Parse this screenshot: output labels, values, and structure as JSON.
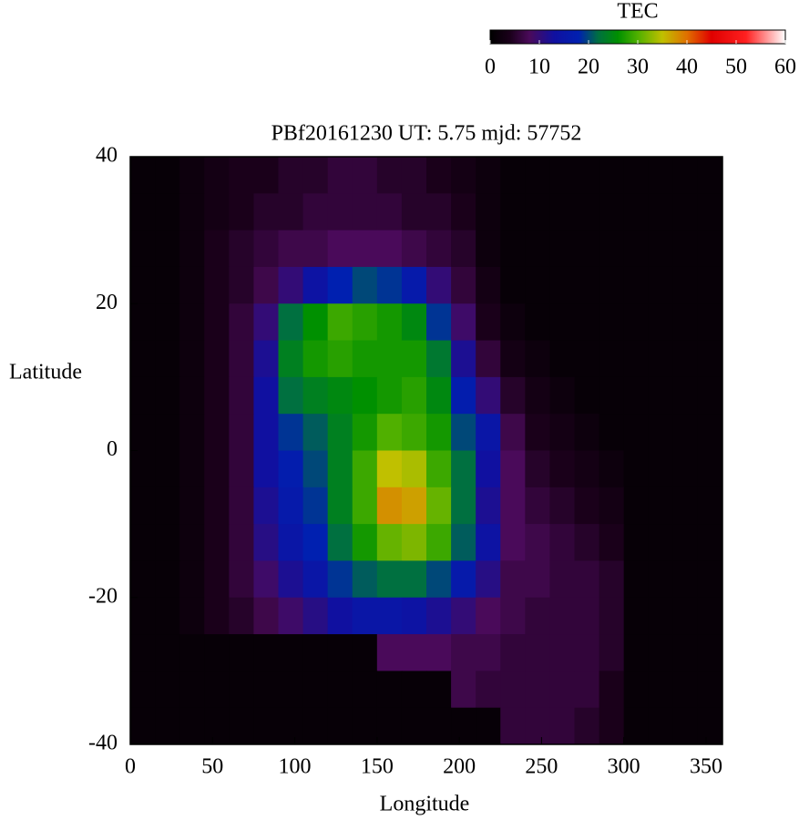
{
  "chart_data": {
    "type": "heatmap",
    "title": "PBf20161230  UT: 5.75  mjd: 57752",
    "x_label": "Longitude",
    "y_label": "Latitude",
    "colorbar_label": "TEC",
    "x": [
      7.5,
      22.5,
      37.5,
      52.5,
      67.5,
      82.5,
      97.5,
      112.5,
      127.5,
      142.5,
      157.5,
      172.5,
      187.5,
      202.5,
      217.5,
      232.5,
      247.5,
      262.5,
      277.5,
      292.5,
      307.5,
      322.5,
      337.5,
      352.5
    ],
    "y": [
      37.5,
      32.5,
      27.5,
      22.5,
      17.5,
      12.5,
      7.5,
      2.5,
      -2.5,
      -7.5,
      -12.5,
      -17.5,
      -22.5,
      -27.5,
      -32.5,
      -37.5
    ],
    "values": [
      [
        1,
        1,
        2,
        3,
        4,
        4,
        5,
        5,
        6,
        6,
        5,
        5,
        4,
        3,
        2,
        1,
        1,
        1,
        1,
        1,
        1,
        1,
        1,
        1
      ],
      [
        1,
        1,
        2,
        3,
        4,
        5,
        5,
        6,
        6,
        6,
        6,
        5,
        5,
        4,
        2,
        1,
        1,
        1,
        1,
        1,
        1,
        1,
        1,
        1
      ],
      [
        1,
        1,
        2,
        4,
        5,
        6,
        7,
        7,
        8,
        8,
        8,
        7,
        6,
        5,
        2,
        1,
        1,
        1,
        1,
        1,
        1,
        1,
        1,
        1
      ],
      [
        1,
        1,
        2,
        4,
        5,
        7,
        10,
        14,
        18,
        20,
        19,
        16,
        10,
        6,
        3,
        1,
        1,
        1,
        1,
        1,
        1,
        1,
        1,
        1
      ],
      [
        1,
        1,
        2,
        4,
        6,
        10,
        22,
        26,
        29,
        28,
        27,
        25,
        19,
        9,
        4,
        2,
        1,
        1,
        1,
        1,
        1,
        1,
        1,
        1
      ],
      [
        1,
        1,
        2,
        4,
        6,
        12,
        24,
        27,
        28,
        27,
        27,
        27,
        23,
        12,
        6,
        3,
        2,
        1,
        1,
        1,
        1,
        1,
        1,
        1
      ],
      [
        1,
        1,
        2,
        4,
        6,
        13,
        22,
        24,
        25,
        26,
        27,
        28,
        25,
        17,
        10,
        5,
        3,
        2,
        1,
        1,
        1,
        1,
        1,
        1
      ],
      [
        1,
        1,
        2,
        4,
        6,
        13,
        19,
        21,
        24,
        27,
        30,
        29,
        27,
        20,
        15,
        7,
        4,
        3,
        2,
        1,
        1,
        1,
        1,
        1
      ],
      [
        1,
        1,
        2,
        4,
        6,
        13,
        17,
        20,
        24,
        29,
        35,
        34,
        29,
        22,
        13,
        8,
        5,
        4,
        3,
        2,
        1,
        1,
        1,
        1
      ],
      [
        1,
        1,
        2,
        4,
        6,
        12,
        16,
        19,
        24,
        29,
        38,
        37,
        31,
        22,
        12,
        8,
        6,
        5,
        4,
        3,
        1,
        1,
        1,
        1
      ],
      [
        1,
        1,
        2,
        4,
        6,
        11,
        15,
        18,
        22,
        27,
        31,
        32,
        29,
        21,
        14,
        8,
        7,
        6,
        5,
        4,
        1,
        1,
        1,
        1
      ],
      [
        1,
        1,
        2,
        4,
        6,
        9,
        12,
        15,
        19,
        21,
        22,
        22,
        20,
        16,
        11,
        7,
        7,
        6,
        6,
        5,
        1,
        1,
        1,
        1
      ],
      [
        1,
        1,
        2,
        4,
        5,
        7,
        9,
        11,
        13,
        15,
        15,
        14,
        12,
        10,
        8,
        7,
        6,
        6,
        6,
        5,
        1,
        1,
        1,
        1
      ],
      [
        1,
        1,
        1,
        1,
        1,
        1,
        1,
        1,
        1,
        1,
        8,
        8,
        8,
        7,
        7,
        6,
        6,
        6,
        6,
        5,
        1,
        1,
        1,
        1
      ],
      [
        1,
        1,
        1,
        1,
        1,
        1,
        1,
        1,
        1,
        1,
        1,
        1,
        1,
        7,
        6,
        6,
        6,
        6,
        6,
        4,
        1,
        1,
        1,
        1
      ],
      [
        1,
        1,
        1,
        1,
        1,
        1,
        1,
        1,
        1,
        1,
        1,
        1,
        1,
        1,
        1,
        6,
        6,
        6,
        5,
        4,
        1,
        1,
        1,
        1
      ]
    ],
    "xlim": [
      0,
      360
    ],
    "xticks": [
      0,
      50,
      100,
      150,
      200,
      250,
      300,
      350
    ],
    "ylim": [
      -40,
      40
    ],
    "yticks": [
      -40,
      -20,
      0,
      20,
      40
    ],
    "zlim": [
      0,
      60
    ],
    "zticks": [
      0,
      10,
      20,
      30,
      40,
      50,
      60
    ],
    "colormap": [
      [
        0,
        "#000000"
      ],
      [
        4,
        "#1a001a"
      ],
      [
        8,
        "#4a0a5a"
      ],
      [
        13,
        "#1010a0"
      ],
      [
        18,
        "#0020b0"
      ],
      [
        22,
        "#007040"
      ],
      [
        26,
        "#009000"
      ],
      [
        30,
        "#50b000"
      ],
      [
        35,
        "#c0c000"
      ],
      [
        40,
        "#e07000"
      ],
      [
        45,
        "#e00000"
      ],
      [
        52,
        "#ff2020"
      ],
      [
        60,
        "#ffffff"
      ]
    ]
  }
}
